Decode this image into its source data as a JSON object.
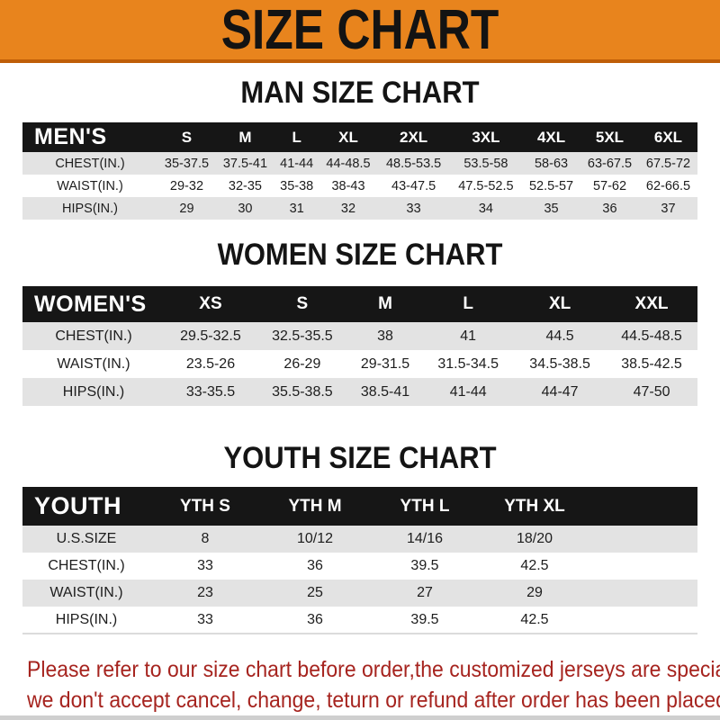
{
  "banner": {
    "title": "SIZE CHART"
  },
  "sections": [
    {
      "title": "MAN SIZE CHART",
      "table": {
        "header_label": "MEN'S",
        "sizes": [
          "S",
          "M",
          "L",
          "XL",
          "2XL",
          "3XL",
          "4XL",
          "5XL",
          "6XL"
        ],
        "rows": [
          {
            "label": "CHEST(IN.)",
            "values": [
              "35-37.5",
              "37.5-41",
              "41-44",
              "44-48.5",
              "48.5-53.5",
              "53.5-58",
              "58-63",
              "63-67.5",
              "67.5-72"
            ]
          },
          {
            "label": "WAIST(IN.)",
            "values": [
              "29-32",
              "32-35",
              "35-38",
              "38-43",
              "43-47.5",
              "47.5-52.5",
              "52.5-57",
              "57-62",
              "62-66.5"
            ]
          },
          {
            "label": "HIPS(IN.)",
            "values": [
              "29",
              "30",
              "31",
              "32",
              "33",
              "34",
              "35",
              "36",
              "37"
            ]
          }
        ]
      }
    },
    {
      "title": "WOMEN SIZE CHART",
      "table": {
        "header_label": "WOMEN'S",
        "sizes": [
          "XS",
          "S",
          "M",
          "L",
          "XL",
          "XXL"
        ],
        "rows": [
          {
            "label": "CHEST(IN.)",
            "values": [
              "29.5-32.5",
              "32.5-35.5",
              "38",
              "41",
              "44.5",
              "44.5-48.5"
            ]
          },
          {
            "label": "WAIST(IN.)",
            "values": [
              "23.5-26",
              "26-29",
              "29-31.5",
              "31.5-34.5",
              "34.5-38.5",
              "38.5-42.5"
            ]
          },
          {
            "label": "HIPS(IN.)",
            "values": [
              "33-35.5",
              "35.5-38.5",
              "38.5-41",
              "41-44",
              "44-47",
              "47-50"
            ]
          }
        ]
      }
    },
    {
      "title": "YOUTH SIZE CHART",
      "table": {
        "header_label": "YOUTH",
        "sizes": [
          "YTH S",
          "YTH M",
          "YTH L",
          "YTH XL"
        ],
        "rows": [
          {
            "label": "U.S.SIZE",
            "values": [
              "8",
              "10/12",
              "14/16",
              "18/20"
            ]
          },
          {
            "label": "CHEST(IN.)",
            "values": [
              "33",
              "36",
              "39.5",
              "42.5"
            ]
          },
          {
            "label": "WAIST(IN.)",
            "values": [
              "23",
              "25",
              "27",
              "29"
            ]
          },
          {
            "label": "HIPS(IN.)",
            "values": [
              "33",
              "36",
              "39.5",
              "42.5"
            ]
          }
        ]
      }
    }
  ],
  "footer": {
    "line1": "Please refer to our size chart before order,the customized jerseys are special products,",
    "line2": "we don't accept cancel, change, teturn or refund after order has been placed!"
  },
  "colors": {
    "banner_bg": "#E8841D",
    "banner_border": "#BF5E08",
    "header_bar_bg": "#161616",
    "alt_row_bg": "#E3E3E3",
    "footer_text": "#A6241F"
  }
}
